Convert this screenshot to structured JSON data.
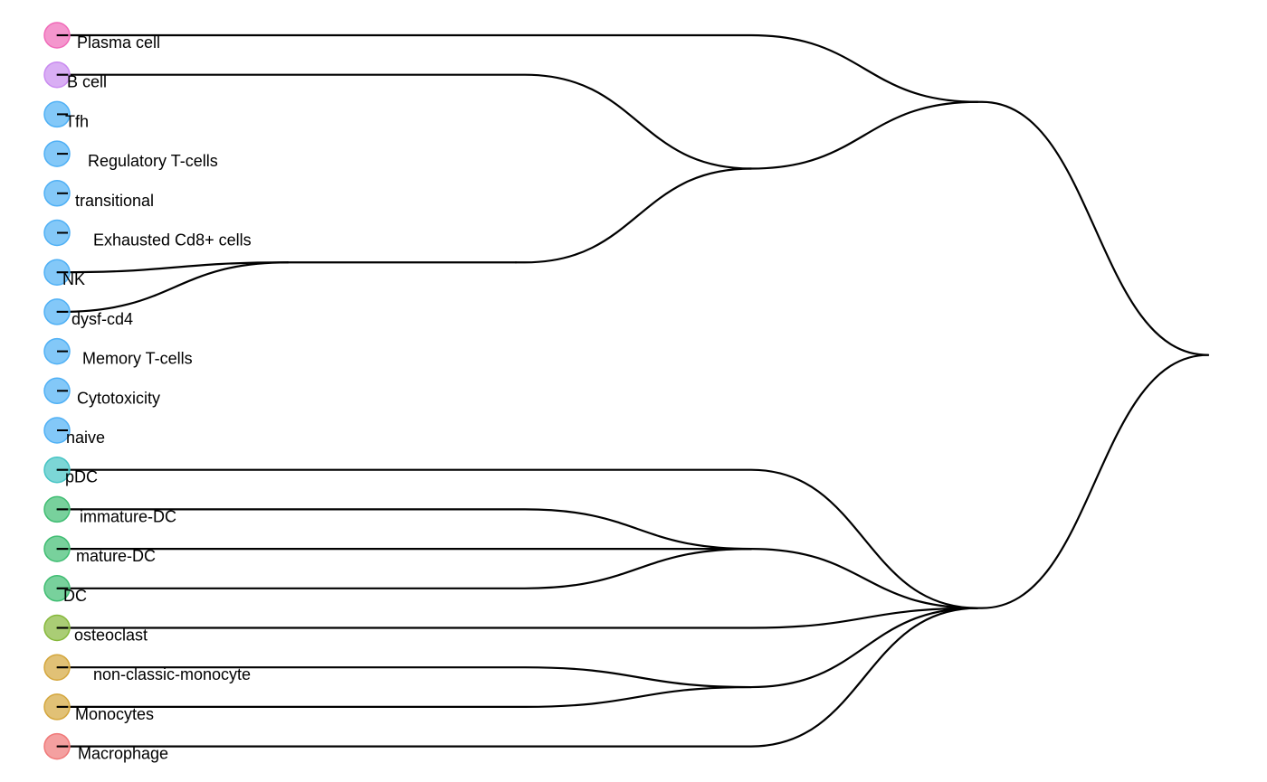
{
  "dendrogram": {
    "leaves": [
      {
        "label": "Plasma cell",
        "color": "#f06ab8"
      },
      {
        "label": "B cell",
        "color": "#c98bf0"
      },
      {
        "label": "Tfh",
        "color": "#4fb0f5"
      },
      {
        "label": "Regulatory T-cells",
        "color": "#4fb0f5"
      },
      {
        "label": "transitional",
        "color": "#4fb0f5"
      },
      {
        "label": "Exhausted Cd8+ cells",
        "color": "#4fb0f5"
      },
      {
        "label": "NK",
        "color": "#4fb0f5"
      },
      {
        "label": "dysf-cd4",
        "color": "#4fb0f5"
      },
      {
        "label": "Memory T-cells",
        "color": "#4fb0f5"
      },
      {
        "label": "Cytotoxicity",
        "color": "#4fb0f5"
      },
      {
        "label": "naive",
        "color": "#4fb0f5"
      },
      {
        "label": "pDC",
        "color": "#45c4c4"
      },
      {
        "label": "immature-DC",
        "color": "#3fbd72"
      },
      {
        "label": "mature-DC",
        "color": "#3fbd72"
      },
      {
        "label": "DC",
        "color": "#3fbd72"
      },
      {
        "label": "osteoclast",
        "color": "#86b83a"
      },
      {
        "label": "non-classic-monocyte",
        "color": "#d4a63c"
      },
      {
        "label": "Monocytes",
        "color": "#d4a63c"
      },
      {
        "label": "Macrophage",
        "color": "#f07878"
      }
    ],
    "tree": [
      [
        [
          0
        ],
        [
          [
            1
          ],
          [
            [
              [
                [
                  2
                ],
                [
                  3
                ]
              ],
              [
                [
                  4
                ],
                [
                  5
                ]
              ],
              [
                6
              ],
              [
                7
              ],
              [
                [
                  8
                ],
                [
                  9
                ],
                [
                  10
                ]
              ]
            ]
          ]
        ]
      ],
      [
        [
          11
        ],
        [
          [
            12
          ],
          [
            13
          ],
          [
            14
          ]
        ],
        [
          15
        ],
        [
          [
            16
          ],
          [
            17
          ]
        ],
        [
          18
        ]
      ]
    ]
  }
}
